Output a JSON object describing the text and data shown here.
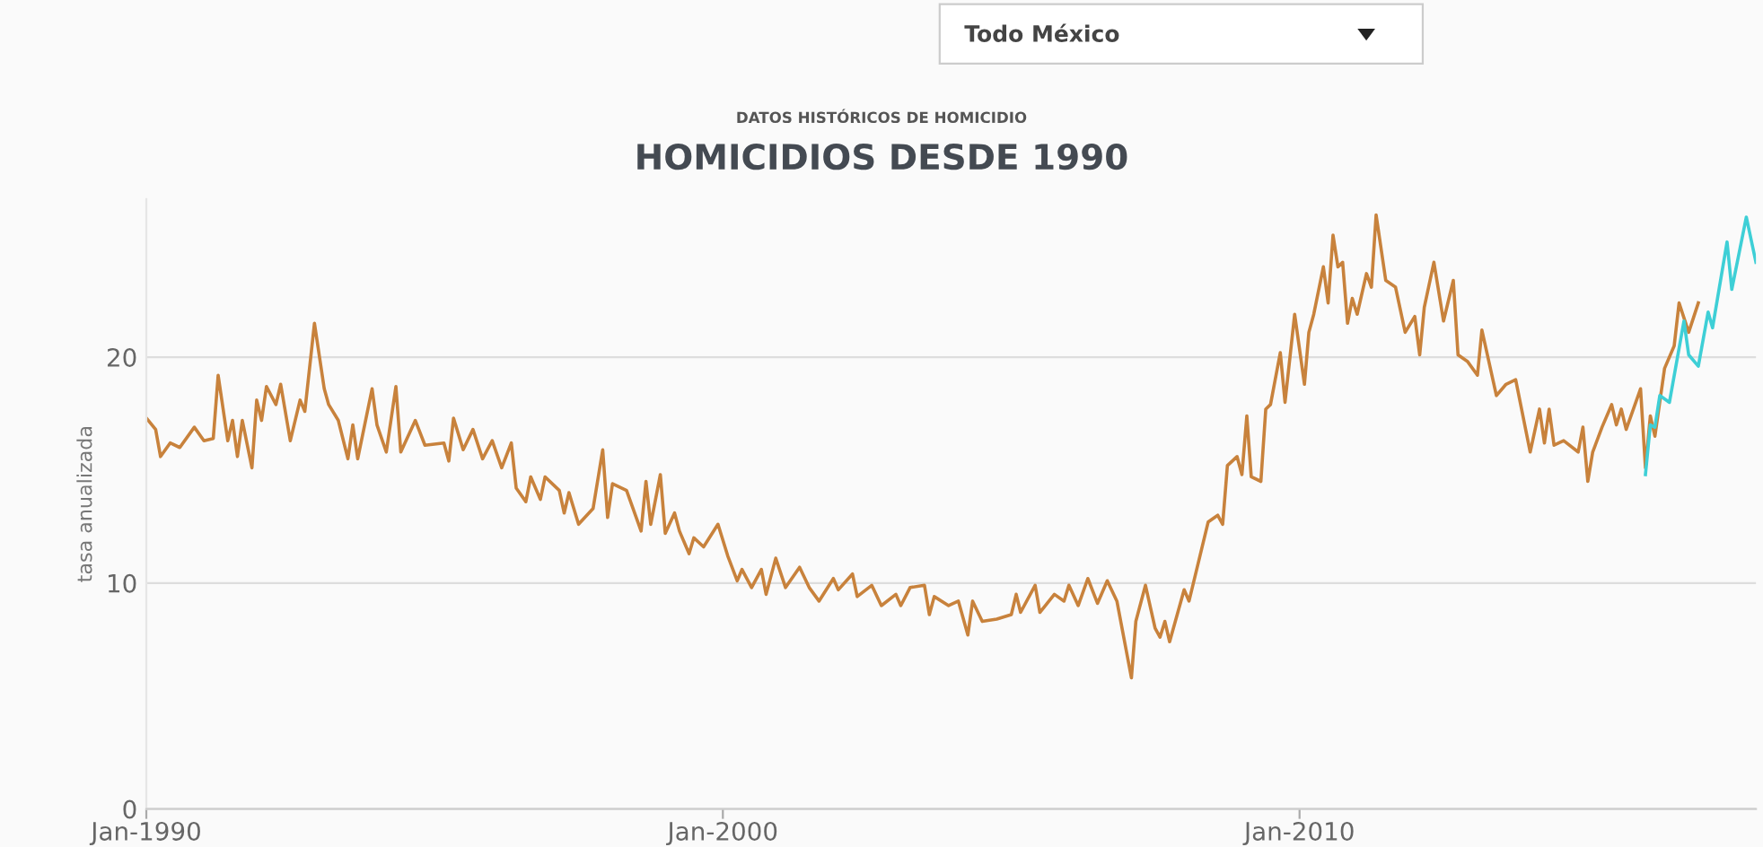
{
  "chart_data": {
    "type": "line",
    "subtitle": "DATOS HISTÓRICOS DE HOMICIDIO",
    "title": "HOMICIDIOS DESDE 1990",
    "ylabel": "tasa anualizada",
    "annotations": [
      "Todo México"
    ],
    "xlim": [
      "1990-01",
      "2017-12"
    ],
    "xticks": [
      {
        "value": "1990-01",
        "label": "Jan-1990"
      },
      {
        "value": "2000-01",
        "label": "Jan-2000"
      },
      {
        "value": "2010-01",
        "label": "Jan-2010"
      }
    ],
    "ylim": [
      0,
      27
    ],
    "yticks": [
      0,
      10,
      20
    ],
    "grid": "y",
    "legend": false,
    "marker": "none",
    "line_style": "solid",
    "series": [
      {
        "color": "#c8823c",
        "x": [
          "1990-01",
          "1990-03",
          "1990-04",
          "1990-06",
          "1990-08",
          "1990-11",
          "1991-01",
          "1991-03",
          "1991-04",
          "1991-06",
          "1991-07",
          "1991-08",
          "1991-09",
          "1991-11",
          "1991-12",
          "1992-01",
          "1992-02",
          "1992-04",
          "1992-05",
          "1992-07",
          "1992-09",
          "1992-10",
          "1992-12",
          "1993-02",
          "1993-03",
          "1993-05",
          "1993-07",
          "1993-08",
          "1993-09",
          "1993-12",
          "1994-01",
          "1994-03",
          "1994-05",
          "1994-06",
          "1994-09",
          "1994-11",
          "1995-03",
          "1995-04",
          "1995-05",
          "1995-07",
          "1995-09",
          "1995-11",
          "1996-01",
          "1996-03",
          "1996-05",
          "1996-06",
          "1996-08",
          "1996-09",
          "1996-11",
          "1996-12",
          "1997-03",
          "1997-04",
          "1997-05",
          "1997-07",
          "1997-10",
          "1997-12",
          "1998-01",
          "1998-02",
          "1998-05",
          "1998-08",
          "1998-09",
          "1998-10",
          "1998-12",
          "1999-01",
          "1999-03",
          "1999-04",
          "1999-06",
          "1999-07",
          "1999-09",
          "1999-12",
          "2000-02",
          "2000-04",
          "2000-05",
          "2000-07",
          "2000-09",
          "2000-10",
          "2000-12",
          "2001-02",
          "2001-05",
          "2001-07",
          "2001-09",
          "2001-12",
          "2002-01",
          "2002-04",
          "2002-05",
          "2002-08",
          "2002-10",
          "2003-01",
          "2003-02",
          "2003-04",
          "2003-07",
          "2003-08",
          "2003-09",
          "2003-12",
          "2004-02",
          "2004-04",
          "2004-05",
          "2004-07",
          "2004-10",
          "2005-01",
          "2005-02",
          "2005-03",
          "2005-06",
          "2005-07",
          "2005-10",
          "2005-12",
          "2006-01",
          "2006-03",
          "2006-05",
          "2006-07",
          "2006-09",
          "2006-11",
          "2007-02",
          "2007-03",
          "2007-05",
          "2007-07",
          "2007-08",
          "2007-09",
          "2007-10",
          "2008-01",
          "2008-02",
          "2008-06",
          "2008-08",
          "2008-09",
          "2008-10",
          "2008-12",
          "2009-01",
          "2009-02",
          "2009-03",
          "2009-05",
          "2009-06",
          "2009-07",
          "2009-09",
          "2009-10",
          "2009-12",
          "2010-02",
          "2010-03",
          "2010-04",
          "2010-06",
          "2010-07",
          "2010-08",
          "2010-09",
          "2010-10",
          "2010-11",
          "2010-12",
          "2011-01",
          "2011-03",
          "2011-04",
          "2011-05",
          "2011-07",
          "2011-09",
          "2011-11",
          "2012-01",
          "2012-02",
          "2012-03",
          "2012-05",
          "2012-07",
          "2012-09",
          "2012-10",
          "2012-12",
          "2013-02",
          "2013-03",
          "2013-06",
          "2013-08",
          "2013-10",
          "2014-01",
          "2014-03",
          "2014-04",
          "2014-05",
          "2014-06",
          "2014-08",
          "2014-11",
          "2014-12",
          "2015-01",
          "2015-02",
          "2015-04",
          "2015-06",
          "2015-07",
          "2015-08",
          "2015-09",
          "2015-12",
          "2016-01",
          "2016-02",
          "2016-03",
          "2016-05",
          "2016-07",
          "2016-08",
          "2016-10",
          "2016-12"
        ],
        "values": [
          17.3,
          16.8,
          15.6,
          16.2,
          16.0,
          16.9,
          16.3,
          16.4,
          19.2,
          16.3,
          17.2,
          15.6,
          17.2,
          15.1,
          18.1,
          17.2,
          18.7,
          17.9,
          18.8,
          16.3,
          18.1,
          17.6,
          21.5,
          18.6,
          17.9,
          17.2,
          15.5,
          17.0,
          15.5,
          18.6,
          17.0,
          15.8,
          18.7,
          15.8,
          17.2,
          16.1,
          16.2,
          15.4,
          17.3,
          15.9,
          16.8,
          15.5,
          16.3,
          15.1,
          16.2,
          14.2,
          13.6,
          14.7,
          13.7,
          14.7,
          14.1,
          13.1,
          14.0,
          12.6,
          13.3,
          15.9,
          12.9,
          14.4,
          14.1,
          12.3,
          14.5,
          12.6,
          14.8,
          12.2,
          13.1,
          12.3,
          11.3,
          12.0,
          11.6,
          12.6,
          11.2,
          10.1,
          10.6,
          9.8,
          10.6,
          9.5,
          11.1,
          9.8,
          10.7,
          9.8,
          9.2,
          10.2,
          9.7,
          10.4,
          9.4,
          9.9,
          9.0,
          9.5,
          9.0,
          9.8,
          9.9,
          8.6,
          9.4,
          9.0,
          9.2,
          7.7,
          9.2,
          8.3,
          8.4,
          8.6,
          9.5,
          8.7,
          9.9,
          8.7,
          9.5,
          9.2,
          9.9,
          9.0,
          10.2,
          9.1,
          10.1,
          9.2,
          5.8,
          8.3,
          9.9,
          8.0,
          7.6,
          8.3,
          7.4,
          9.7,
          9.2,
          12.7,
          13.0,
          12.6,
          15.2,
          15.6,
          14.8,
          17.4,
          14.7,
          14.5,
          17.7,
          17.9,
          20.2,
          18.0,
          21.9,
          18.8,
          21.1,
          21.9,
          24.0,
          22.4,
          25.4,
          24.0,
          24.2,
          21.5,
          22.6,
          21.9,
          23.7,
          23.1,
          26.3,
          23.4,
          23.1,
          21.1,
          21.8,
          20.1,
          22.2,
          24.2,
          21.6,
          23.4,
          20.1,
          19.8,
          19.2,
          21.2,
          18.3,
          18.8,
          19.0,
          15.8,
          17.7,
          16.2,
          17.7,
          16.1,
          16.3,
          15.8,
          16.9,
          14.5,
          15.8,
          16.9,
          17.9,
          17.0,
          17.7,
          16.8,
          18.6,
          15.1,
          17.4,
          16.5,
          19.5,
          20.5,
          22.4,
          21.1,
          22.4
        ]
      },
      {
        "color": "#3ecfd6",
        "x": [
          "2016-01",
          "2016-02",
          "2016-03",
          "2016-04",
          "2016-06",
          "2016-09",
          "2016-10",
          "2016-12",
          "2017-02",
          "2017-03",
          "2017-06",
          "2017-07",
          "2017-10",
          "2017-12"
        ],
        "values": [
          14.8,
          17.0,
          16.9,
          18.3,
          18.0,
          21.6,
          20.1,
          19.6,
          22.0,
          21.3,
          25.1,
          23.0,
          26.2,
          24.2
        ]
      }
    ]
  }
}
